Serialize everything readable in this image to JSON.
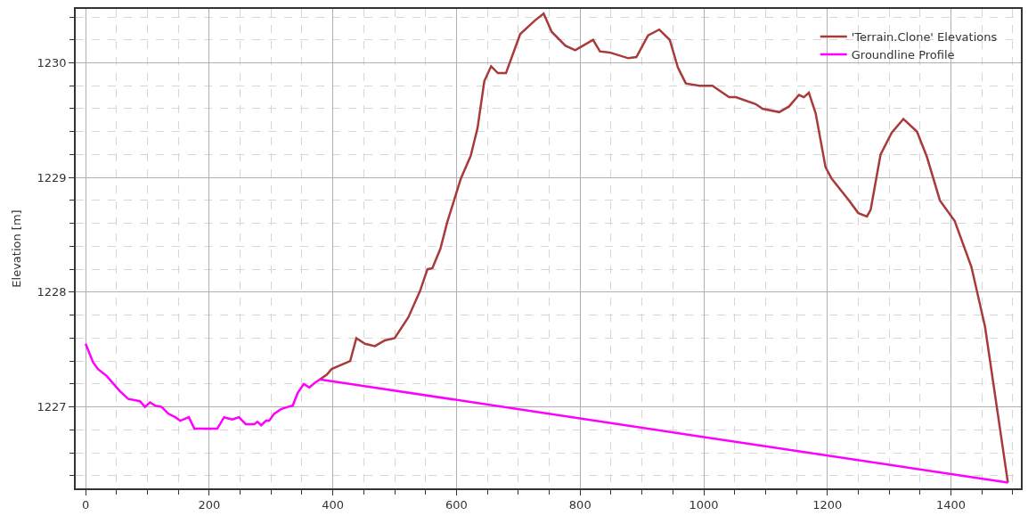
{
  "chart_data": {
    "type": "line",
    "ylabel": "Elevation [m]",
    "legend": "top right",
    "grid": true,
    "marker": "none",
    "line_style": "solid",
    "xlim": [
      -16,
      1513
    ],
    "ylim": [
      1226.29,
      1230.47
    ],
    "xticks": [
      0,
      {
        "value": 50,
        "label": null
      },
      200,
      {
        "value": 100,
        "label": null
      },
      {
        "value": 150,
        "label": null
      },
      {
        "value": 250,
        "label": null
      },
      {
        "value": 300,
        "label": null
      },
      {
        "value": 350,
        "label": null
      },
      400,
      {
        "value": 450,
        "label": null
      },
      {
        "value": 500,
        "label": null
      },
      {
        "value": 550,
        "label": null
      },
      600,
      {
        "value": 650,
        "label": null
      },
      {
        "value": 700,
        "label": null
      },
      {
        "value": 750,
        "label": null
      },
      800,
      {
        "value": 850,
        "label": null
      },
      {
        "value": 900,
        "label": null
      },
      {
        "value": 950,
        "label": null
      },
      1000,
      {
        "value": 1050,
        "label": null
      },
      {
        "value": 1100,
        "label": null
      },
      {
        "value": 1150,
        "label": null
      },
      1200,
      {
        "value": 1250,
        "label": null
      },
      {
        "value": 1300,
        "label": null
      },
      {
        "value": 1350,
        "label": null
      },
      1400,
      {
        "value": 1450,
        "label": null
      },
      {
        "value": 1500,
        "label": null
      }
    ],
    "yticks": [
      {
        "value": 1226.4,
        "label": null
      },
      {
        "value": 1226.6,
        "label": null
      },
      {
        "value": 1226.8,
        "label": null
      },
      1227,
      {
        "value": 1227.2,
        "label": null
      },
      {
        "value": 1227.4,
        "label": null
      },
      {
        "value": 1227.6,
        "label": null
      },
      {
        "value": 1227.8,
        "label": null
      },
      1228,
      {
        "value": 1228.2,
        "label": null
      },
      {
        "value": 1228.4,
        "label": null
      },
      {
        "value": 1228.6,
        "label": null
      },
      {
        "value": 1228.8,
        "label": null
      },
      1229,
      {
        "value": 1229.2,
        "label": null
      },
      {
        "value": 1229.4,
        "label": null
      },
      {
        "value": 1229.6,
        "label": null
      },
      {
        "value": 1229.8,
        "label": null
      },
      1230,
      {
        "value": 1230.2,
        "label": null
      },
      {
        "value": 1230.4,
        "label": null
      }
    ],
    "series": [
      {
        "name": "'Terrain.Clone' Elevations",
        "color": "#a83a3a",
        "x": [
          379,
          390,
          398,
          428,
          438,
          452,
          468,
          484,
          500,
          522,
          541,
          553,
          561,
          574,
          585,
          607,
          623,
          634,
          645,
          656,
          667,
          680,
          703,
          727,
          741,
          754,
          776,
          792,
          805,
          821,
          832,
          848,
          878,
          891,
          910,
          928,
          945,
          958,
          971,
          993,
          1014,
          1041,
          1052,
          1084,
          1095,
          1122,
          1138,
          1154,
          1162,
          1170,
          1181,
          1197,
          1207,
          1235,
          1250,
          1264,
          1270,
          1286,
          1304,
          1323,
          1345,
          1361,
          1382,
          1406,
          1433,
          1455,
          1492
        ],
        "values": [
          1227.24,
          1227.28,
          1227.33,
          1227.4,
          1227.6,
          1227.55,
          1227.53,
          1227.58,
          1227.6,
          1227.78,
          1228.01,
          1228.2,
          1228.21,
          1228.38,
          1228.61,
          1228.99,
          1229.19,
          1229.43,
          1229.84,
          1229.97,
          1229.91,
          1229.91,
          1230.25,
          1230.37,
          1230.43,
          1230.27,
          1230.15,
          1230.11,
          1230.15,
          1230.2,
          1230.1,
          1230.09,
          1230.04,
          1230.05,
          1230.24,
          1230.29,
          1230.2,
          1229.96,
          1229.82,
          1229.8,
          1229.8,
          1229.7,
          1229.7,
          1229.64,
          1229.6,
          1229.57,
          1229.62,
          1229.72,
          1229.7,
          1229.74,
          1229.56,
          1229.09,
          1228.99,
          1228.8,
          1228.69,
          1228.66,
          1228.72,
          1229.2,
          1229.39,
          1229.51,
          1229.4,
          1229.18,
          1228.8,
          1228.62,
          1228.22,
          1227.7,
          1226.34
        ]
      },
      {
        "name": "Groundline Profile",
        "color": "#ff00ff",
        "x": [
          0,
          12,
          20,
          34,
          55,
          69,
          88,
          96,
          104,
          113,
          123,
          134,
          145,
          153,
          167,
          176,
          213,
          224,
          237,
          248,
          259,
          273,
          278,
          284,
          292,
          297,
          305,
          316,
          327,
          335,
          343,
          353,
          362,
          371,
          379,
          1492
        ],
        "values": [
          1227.55,
          1227.39,
          1227.33,
          1227.27,
          1227.14,
          1227.07,
          1227.05,
          1227.0,
          1227.04,
          1227.01,
          1227.0,
          1226.94,
          1226.91,
          1226.88,
          1226.91,
          1226.81,
          1226.81,
          1226.91,
          1226.89,
          1226.91,
          1226.85,
          1226.85,
          1226.87,
          1226.84,
          1226.88,
          1226.88,
          1226.94,
          1226.98,
          1227.0,
          1227.01,
          1227.12,
          1227.2,
          1227.17,
          1227.21,
          1227.24,
          1226.34
        ]
      }
    ]
  }
}
